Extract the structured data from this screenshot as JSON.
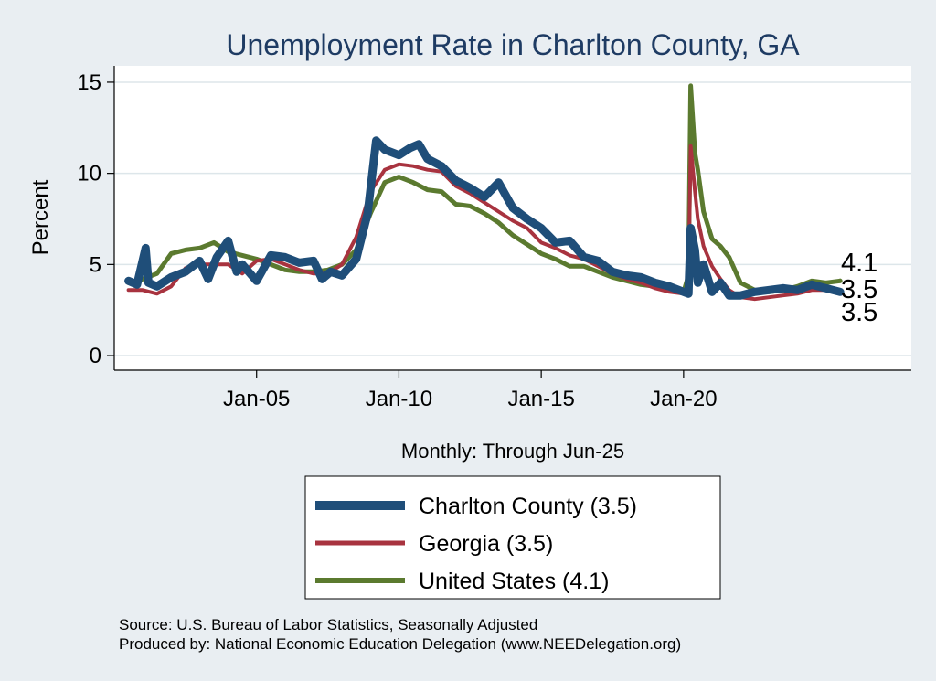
{
  "chart_data": {
    "type": "line",
    "title": "Unemployment Rate in Charlton  County, GA",
    "xlabel": "Monthly: Through Jun-25",
    "ylabel": "Percent",
    "xlim": [
      2000.0,
      2028.0
    ],
    "ylim": [
      -0.8,
      15.9
    ],
    "yticks": [
      0,
      5,
      10,
      15
    ],
    "xticks": [
      {
        "value": 2005,
        "label": "Jan-05"
      },
      {
        "value": 2010,
        "label": "Jan-10"
      },
      {
        "value": 2015,
        "label": "Jan-15"
      },
      {
        "value": 2020,
        "label": "Jan-20"
      }
    ],
    "grid": true,
    "legend_position": "bottom",
    "series": [
      {
        "name": "United States",
        "legend_label": "United States (4.1)",
        "end_label": "4.1",
        "color": "#5b7a2f",
        "width": 5,
        "points": [
          [
            2000.5,
            4.0
          ],
          [
            2001.0,
            4.2
          ],
          [
            2001.5,
            4.5
          ],
          [
            2002.0,
            5.6
          ],
          [
            2002.5,
            5.8
          ],
          [
            2003.0,
            5.9
          ],
          [
            2003.5,
            6.2
          ],
          [
            2004.0,
            5.7
          ],
          [
            2004.5,
            5.5
          ],
          [
            2005.0,
            5.3
          ],
          [
            2005.5,
            5.0
          ],
          [
            2006.0,
            4.7
          ],
          [
            2006.5,
            4.6
          ],
          [
            2007.0,
            4.6
          ],
          [
            2007.5,
            4.7
          ],
          [
            2008.0,
            5.0
          ],
          [
            2008.5,
            5.8
          ],
          [
            2009.0,
            7.8
          ],
          [
            2009.5,
            9.5
          ],
          [
            2010.0,
            9.8
          ],
          [
            2010.5,
            9.5
          ],
          [
            2011.0,
            9.1
          ],
          [
            2011.5,
            9.0
          ],
          [
            2012.0,
            8.3
          ],
          [
            2012.5,
            8.2
          ],
          [
            2013.0,
            7.8
          ],
          [
            2013.5,
            7.3
          ],
          [
            2014.0,
            6.6
          ],
          [
            2014.5,
            6.1
          ],
          [
            2015.0,
            5.6
          ],
          [
            2015.5,
            5.3
          ],
          [
            2016.0,
            4.9
          ],
          [
            2016.5,
            4.9
          ],
          [
            2017.0,
            4.6
          ],
          [
            2017.5,
            4.3
          ],
          [
            2018.0,
            4.1
          ],
          [
            2018.5,
            3.9
          ],
          [
            2019.0,
            3.8
          ],
          [
            2019.5,
            3.6
          ],
          [
            2020.0,
            3.5
          ],
          [
            2020.17,
            4.4
          ],
          [
            2020.25,
            14.8
          ],
          [
            2020.4,
            11.1
          ],
          [
            2020.5,
            10.2
          ],
          [
            2020.7,
            7.9
          ],
          [
            2021.0,
            6.4
          ],
          [
            2021.3,
            6.0
          ],
          [
            2021.6,
            5.4
          ],
          [
            2022.0,
            4.0
          ],
          [
            2022.5,
            3.6
          ],
          [
            2023.0,
            3.5
          ],
          [
            2023.5,
            3.6
          ],
          [
            2024.0,
            3.8
          ],
          [
            2024.5,
            4.1
          ],
          [
            2025.0,
            4.0
          ],
          [
            2025.5,
            4.1
          ]
        ]
      },
      {
        "name": "Georgia",
        "legend_label": "Georgia (3.5)",
        "end_label": "3.5",
        "color": "#a8333f",
        "width": 4,
        "points": [
          [
            2000.5,
            3.6
          ],
          [
            2001.0,
            3.6
          ],
          [
            2001.5,
            3.4
          ],
          [
            2002.0,
            3.8
          ],
          [
            2002.5,
            4.8
          ],
          [
            2003.0,
            5.0
          ],
          [
            2003.5,
            5.0
          ],
          [
            2004.0,
            5.0
          ],
          [
            2004.5,
            4.5
          ],
          [
            2005.0,
            5.2
          ],
          [
            2005.5,
            5.3
          ],
          [
            2006.0,
            5.0
          ],
          [
            2006.5,
            4.7
          ],
          [
            2007.0,
            4.5
          ],
          [
            2007.5,
            4.5
          ],
          [
            2008.0,
            5.0
          ],
          [
            2008.5,
            6.5
          ],
          [
            2009.0,
            9.0
          ],
          [
            2009.5,
            10.2
          ],
          [
            2010.0,
            10.5
          ],
          [
            2010.5,
            10.4
          ],
          [
            2011.0,
            10.2
          ],
          [
            2011.5,
            10.1
          ],
          [
            2012.0,
            9.3
          ],
          [
            2012.5,
            8.9
          ],
          [
            2013.0,
            8.4
          ],
          [
            2013.5,
            7.9
          ],
          [
            2014.0,
            7.4
          ],
          [
            2014.5,
            7.0
          ],
          [
            2015.0,
            6.2
          ],
          [
            2015.5,
            5.9
          ],
          [
            2016.0,
            5.5
          ],
          [
            2016.5,
            5.3
          ],
          [
            2017.0,
            4.9
          ],
          [
            2017.5,
            4.5
          ],
          [
            2018.0,
            4.2
          ],
          [
            2018.5,
            4.0
          ],
          [
            2019.0,
            3.7
          ],
          [
            2019.5,
            3.5
          ],
          [
            2020.0,
            3.4
          ],
          [
            2020.17,
            3.7
          ],
          [
            2020.25,
            11.5
          ],
          [
            2020.4,
            9.0
          ],
          [
            2020.5,
            7.5
          ],
          [
            2020.7,
            6.0
          ],
          [
            2021.0,
            4.9
          ],
          [
            2021.3,
            4.2
          ],
          [
            2021.6,
            3.6
          ],
          [
            2022.0,
            3.2
          ],
          [
            2022.5,
            3.1
          ],
          [
            2023.0,
            3.2
          ],
          [
            2023.5,
            3.3
          ],
          [
            2024.0,
            3.4
          ],
          [
            2024.5,
            3.6
          ],
          [
            2025.0,
            3.6
          ],
          [
            2025.5,
            3.5
          ]
        ]
      },
      {
        "name": "Charlton  County",
        "legend_label": "Charlton  County (3.5)",
        "end_label": "3.5",
        "color": "#1f4e79",
        "width": 9,
        "points": [
          [
            2000.5,
            4.1
          ],
          [
            2000.8,
            3.9
          ],
          [
            2001.1,
            5.9
          ],
          [
            2001.2,
            4.0
          ],
          [
            2001.5,
            3.8
          ],
          [
            2002.0,
            4.3
          ],
          [
            2002.5,
            4.6
          ],
          [
            2003.0,
            5.2
          ],
          [
            2003.3,
            4.2
          ],
          [
            2003.6,
            5.4
          ],
          [
            2004.0,
            6.3
          ],
          [
            2004.3,
            4.6
          ],
          [
            2004.5,
            5.0
          ],
          [
            2005.0,
            4.1
          ],
          [
            2005.5,
            5.5
          ],
          [
            2006.0,
            5.4
          ],
          [
            2006.5,
            5.1
          ],
          [
            2007.0,
            5.2
          ],
          [
            2007.3,
            4.2
          ],
          [
            2007.6,
            4.6
          ],
          [
            2008.0,
            4.4
          ],
          [
            2008.5,
            5.3
          ],
          [
            2008.9,
            7.8
          ],
          [
            2009.2,
            11.8
          ],
          [
            2009.5,
            11.3
          ],
          [
            2010.0,
            11.0
          ],
          [
            2010.4,
            11.4
          ],
          [
            2010.7,
            11.6
          ],
          [
            2011.0,
            10.8
          ],
          [
            2011.5,
            10.4
          ],
          [
            2012.0,
            9.6
          ],
          [
            2012.5,
            9.2
          ],
          [
            2013.0,
            8.7
          ],
          [
            2013.5,
            9.5
          ],
          [
            2014.0,
            8.1
          ],
          [
            2014.5,
            7.5
          ],
          [
            2015.0,
            7.0
          ],
          [
            2015.5,
            6.2
          ],
          [
            2016.0,
            6.3
          ],
          [
            2016.5,
            5.4
          ],
          [
            2017.0,
            5.2
          ],
          [
            2017.5,
            4.6
          ],
          [
            2018.0,
            4.4
          ],
          [
            2018.5,
            4.3
          ],
          [
            2019.0,
            4.0
          ],
          [
            2019.5,
            3.8
          ],
          [
            2020.0,
            3.5
          ],
          [
            2020.17,
            3.4
          ],
          [
            2020.25,
            7.0
          ],
          [
            2020.4,
            5.8
          ],
          [
            2020.5,
            4.0
          ],
          [
            2020.7,
            5.0
          ],
          [
            2021.0,
            3.5
          ],
          [
            2021.3,
            4.0
          ],
          [
            2021.6,
            3.3
          ],
          [
            2022.0,
            3.3
          ],
          [
            2022.5,
            3.5
          ],
          [
            2023.0,
            3.6
          ],
          [
            2023.5,
            3.7
          ],
          [
            2024.0,
            3.6
          ],
          [
            2024.5,
            3.9
          ],
          [
            2025.0,
            3.7
          ],
          [
            2025.5,
            3.5
          ]
        ]
      }
    ],
    "legend_order": [
      "Charlton  County",
      "Georgia",
      "United States"
    ]
  },
  "footer": {
    "source": "Source: U.S. Bureau of Labor Statistics, Seasonally Adjusted",
    "produced": "Produced by: National Economic Education Delegation (www.NEEDelegation.org)"
  }
}
